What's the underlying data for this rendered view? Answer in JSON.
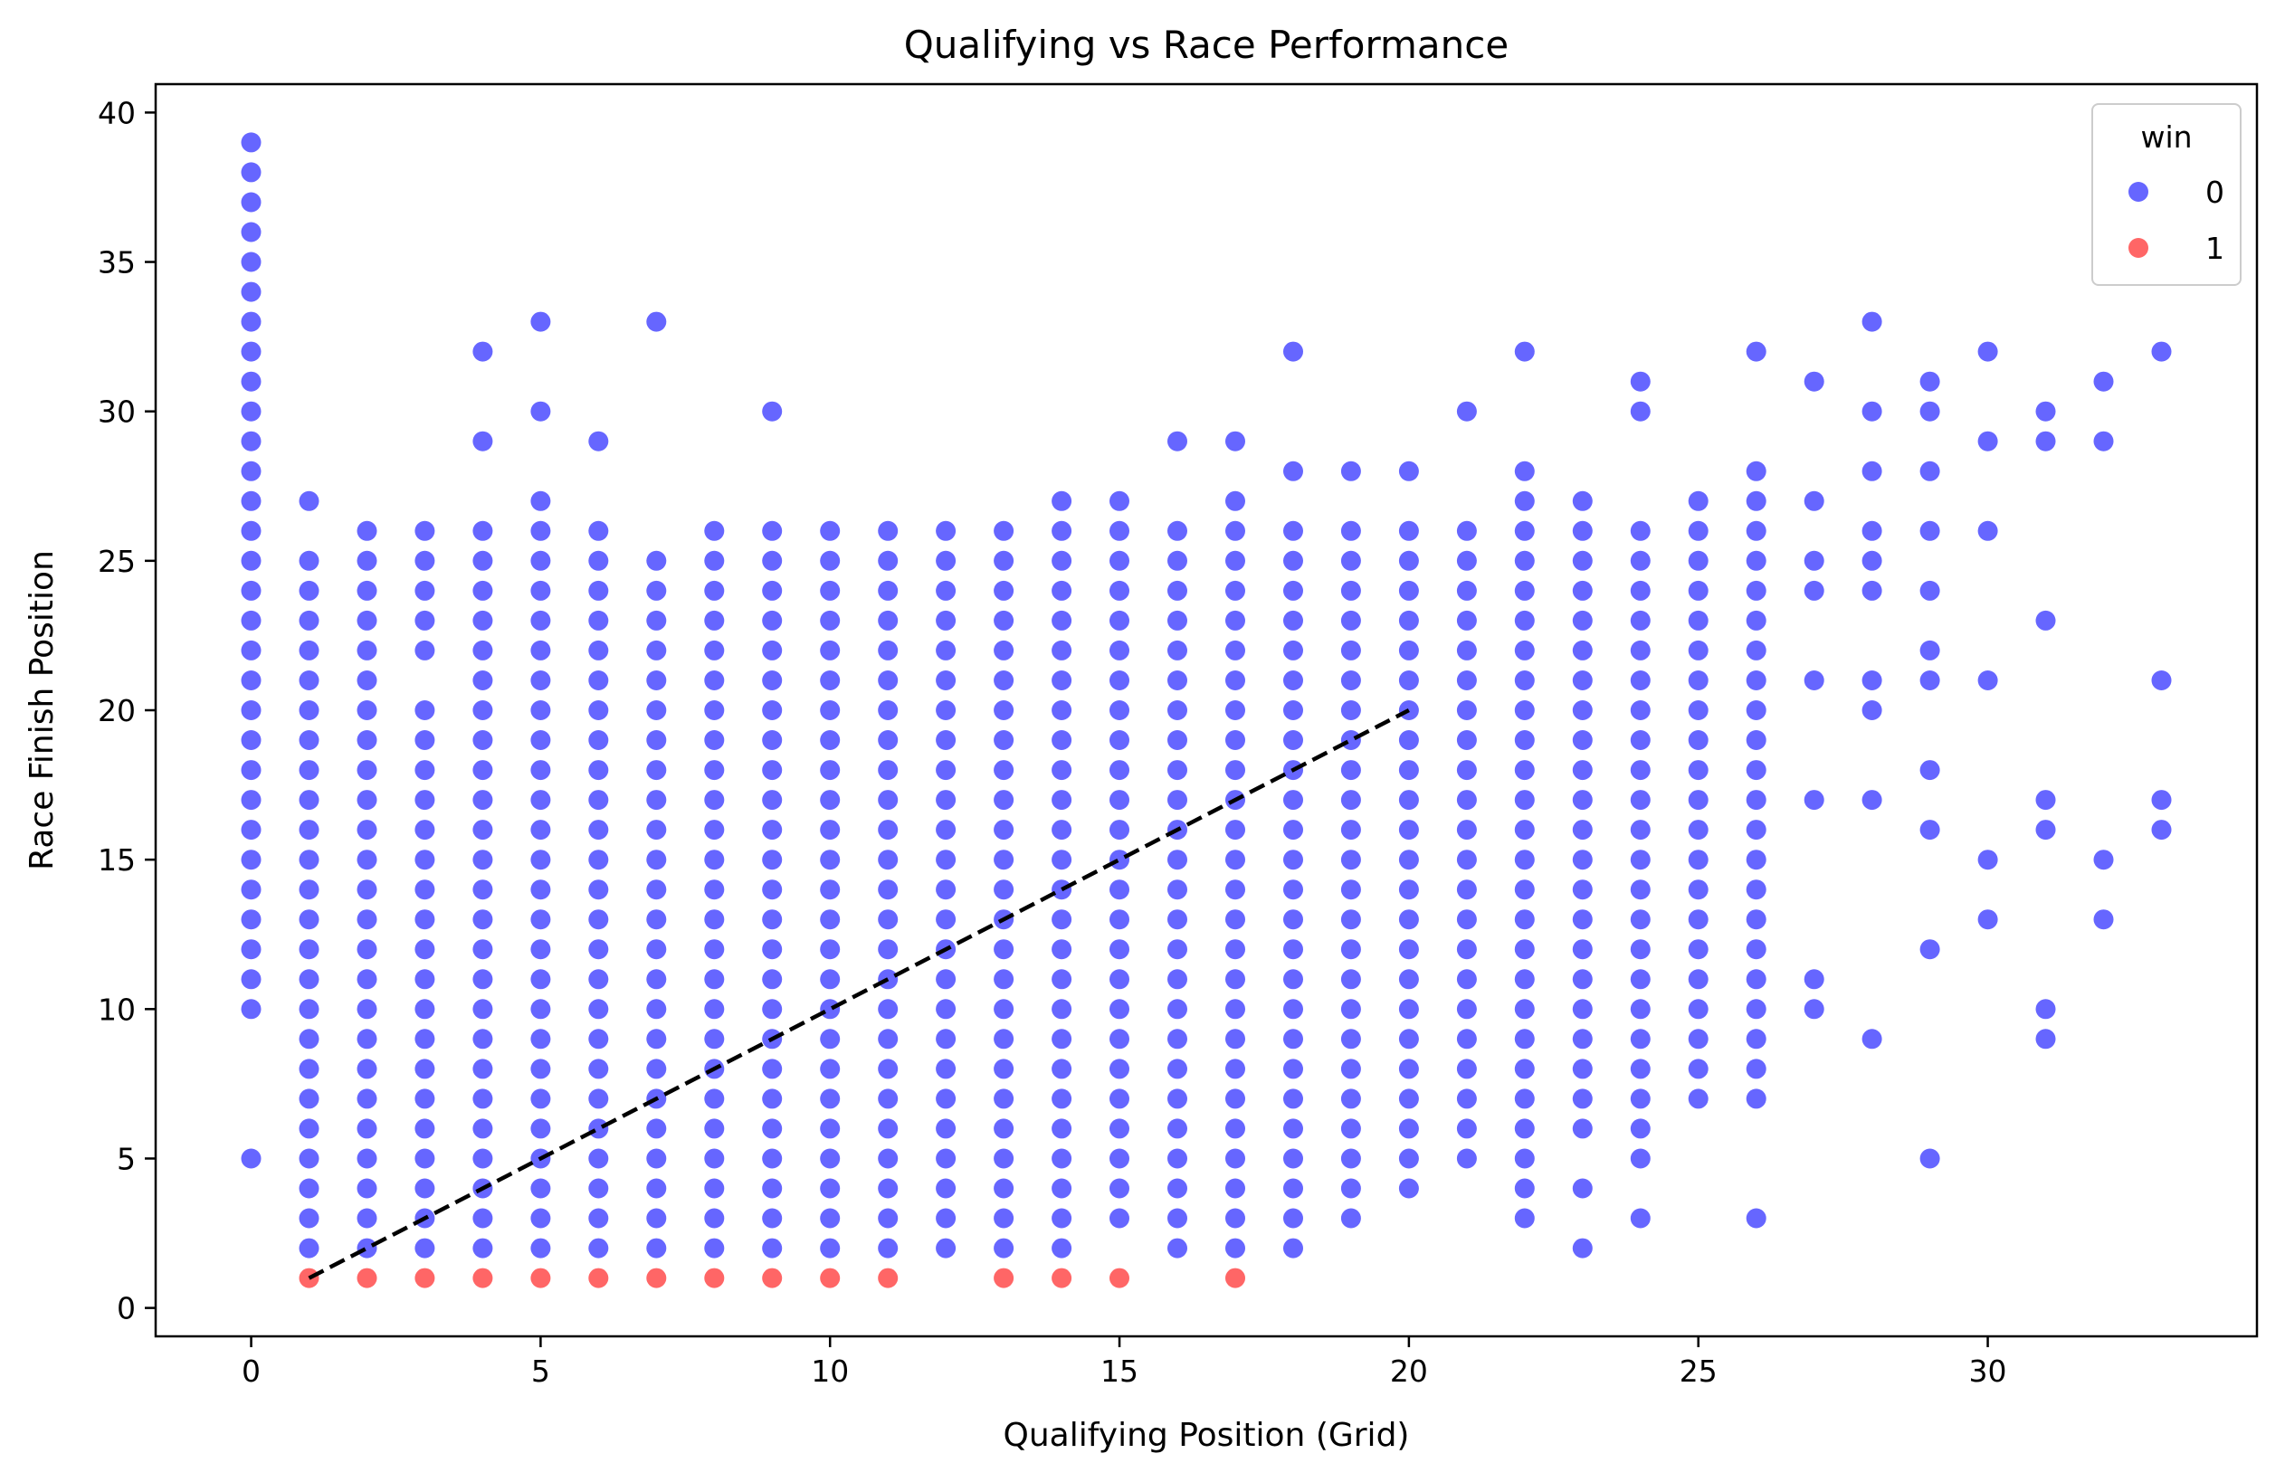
{
  "chart_data": {
    "type": "scatter",
    "title": "Qualifying vs Race Performance",
    "xlabel": "Qualifying Position (Grid)",
    "ylabel": "Race Finish Position",
    "xlim": [
      -1.65,
      34.65
    ],
    "ylim": [
      -0.95,
      40.95
    ],
    "xticks": [
      0,
      5,
      10,
      15,
      20,
      25,
      30
    ],
    "yticks": [
      0,
      5,
      10,
      15,
      20,
      25,
      30,
      35,
      40
    ],
    "grid": false,
    "legend": {
      "title": "win",
      "placement": "top-right"
    },
    "colors": {
      "win_0": "#0000ff",
      "win_1": "#ff0000"
    },
    "marker_alpha": 0.6,
    "series": [
      {
        "name": "0",
        "color": "#0000ff",
        "columns": [
          {
            "x": 0,
            "y": [
              5,
              10,
              11,
              12,
              13,
              14,
              15,
              16,
              17,
              18,
              19,
              20,
              21,
              22,
              23,
              24,
              25,
              26,
              27,
              28,
              29,
              30,
              31,
              32,
              33,
              34,
              35,
              36,
              37,
              38,
              39
            ]
          },
          {
            "x": 1,
            "y": [
              2,
              3,
              4,
              5,
              6,
              7,
              8,
              9,
              10,
              11,
              12,
              13,
              14,
              15,
              16,
              17,
              18,
              19,
              20,
              21,
              22,
              23,
              24,
              25,
              27
            ]
          },
          {
            "x": 2,
            "y": [
              2,
              3,
              4,
              5,
              6,
              7,
              8,
              9,
              10,
              11,
              12,
              13,
              14,
              15,
              16,
              17,
              18,
              19,
              20,
              21,
              22,
              23,
              24,
              25,
              26
            ]
          },
          {
            "x": 3,
            "y": [
              2,
              3,
              4,
              5,
              6,
              7,
              8,
              9,
              10,
              11,
              12,
              13,
              14,
              15,
              16,
              17,
              18,
              19,
              20,
              22,
              23,
              24,
              25,
              26
            ]
          },
          {
            "x": 4,
            "y": [
              2,
              3,
              4,
              5,
              6,
              7,
              8,
              9,
              10,
              11,
              12,
              13,
              14,
              15,
              16,
              17,
              18,
              19,
              20,
              21,
              22,
              23,
              24,
              25,
              26,
              29,
              32
            ]
          },
          {
            "x": 5,
            "y": [
              2,
              3,
              4,
              5,
              6,
              7,
              8,
              9,
              10,
              11,
              12,
              13,
              14,
              15,
              16,
              17,
              18,
              19,
              20,
              21,
              22,
              23,
              24,
              25,
              26,
              27,
              30,
              33
            ]
          },
          {
            "x": 6,
            "y": [
              2,
              3,
              4,
              5,
              6,
              7,
              8,
              9,
              10,
              11,
              12,
              13,
              14,
              15,
              16,
              17,
              18,
              19,
              20,
              21,
              22,
              23,
              24,
              25,
              26,
              29
            ]
          },
          {
            "x": 7,
            "y": [
              2,
              3,
              4,
              5,
              6,
              7,
              8,
              9,
              10,
              11,
              12,
              13,
              14,
              15,
              16,
              17,
              18,
              19,
              20,
              21,
              22,
              23,
              24,
              25,
              33
            ]
          },
          {
            "x": 8,
            "y": [
              2,
              3,
              4,
              5,
              6,
              7,
              8,
              9,
              10,
              11,
              12,
              13,
              14,
              15,
              16,
              17,
              18,
              19,
              20,
              21,
              22,
              23,
              24,
              25,
              26
            ]
          },
          {
            "x": 9,
            "y": [
              2,
              3,
              4,
              5,
              6,
              7,
              8,
              9,
              10,
              11,
              12,
              13,
              14,
              15,
              16,
              17,
              18,
              19,
              20,
              21,
              22,
              23,
              24,
              25,
              26,
              30
            ]
          },
          {
            "x": 10,
            "y": [
              2,
              3,
              4,
              5,
              6,
              7,
              8,
              9,
              10,
              11,
              12,
              13,
              14,
              15,
              16,
              17,
              18,
              19,
              20,
              21,
              22,
              23,
              24,
              25,
              26
            ]
          },
          {
            "x": 11,
            "y": [
              2,
              3,
              4,
              5,
              6,
              7,
              8,
              9,
              10,
              11,
              12,
              13,
              14,
              15,
              16,
              17,
              18,
              19,
              20,
              21,
              22,
              23,
              24,
              25,
              26
            ]
          },
          {
            "x": 12,
            "y": [
              2,
              3,
              4,
              5,
              6,
              7,
              8,
              9,
              10,
              11,
              12,
              13,
              14,
              15,
              16,
              17,
              18,
              19,
              20,
              21,
              22,
              23,
              24,
              25,
              26
            ]
          },
          {
            "x": 13,
            "y": [
              2,
              3,
              4,
              5,
              6,
              7,
              8,
              9,
              10,
              11,
              12,
              13,
              14,
              15,
              16,
              17,
              18,
              19,
              20,
              21,
              22,
              23,
              24,
              25,
              26
            ]
          },
          {
            "x": 14,
            "y": [
              2,
              3,
              4,
              5,
              6,
              7,
              8,
              9,
              10,
              11,
              12,
              13,
              14,
              15,
              16,
              17,
              18,
              19,
              20,
              21,
              22,
              23,
              24,
              25,
              26,
              27
            ]
          },
          {
            "x": 15,
            "y": [
              3,
              4,
              5,
              6,
              7,
              8,
              9,
              10,
              11,
              12,
              13,
              14,
              15,
              16,
              17,
              18,
              19,
              20,
              21,
              22,
              23,
              24,
              25,
              26,
              27
            ]
          },
          {
            "x": 16,
            "y": [
              2,
              3,
              4,
              5,
              6,
              7,
              8,
              9,
              10,
              11,
              12,
              13,
              14,
              15,
              16,
              17,
              18,
              19,
              20,
              21,
              22,
              23,
              24,
              25,
              26,
              29
            ]
          },
          {
            "x": 17,
            "y": [
              2,
              3,
              4,
              5,
              6,
              7,
              8,
              9,
              10,
              11,
              12,
              13,
              14,
              15,
              16,
              17,
              18,
              19,
              20,
              21,
              22,
              23,
              24,
              25,
              26,
              27,
              29
            ]
          },
          {
            "x": 18,
            "y": [
              2,
              3,
              4,
              5,
              6,
              7,
              8,
              9,
              10,
              11,
              12,
              13,
              14,
              15,
              16,
              17,
              18,
              19,
              20,
              21,
              22,
              23,
              24,
              25,
              26,
              28,
              32
            ]
          },
          {
            "x": 19,
            "y": [
              3,
              4,
              5,
              6,
              7,
              8,
              9,
              10,
              11,
              12,
              13,
              14,
              15,
              16,
              17,
              18,
              19,
              20,
              21,
              22,
              23,
              24,
              25,
              26,
              28
            ]
          },
          {
            "x": 20,
            "y": [
              4,
              5,
              6,
              7,
              8,
              9,
              10,
              11,
              12,
              13,
              14,
              15,
              16,
              17,
              18,
              19,
              20,
              21,
              22,
              23,
              24,
              25,
              26,
              28
            ]
          },
          {
            "x": 21,
            "y": [
              5,
              6,
              7,
              8,
              9,
              10,
              11,
              12,
              13,
              14,
              15,
              16,
              17,
              18,
              19,
              20,
              21,
              22,
              23,
              24,
              25,
              26,
              30
            ]
          },
          {
            "x": 22,
            "y": [
              3,
              4,
              5,
              6,
              7,
              8,
              9,
              10,
              11,
              12,
              13,
              14,
              15,
              16,
              17,
              18,
              19,
              20,
              21,
              22,
              23,
              24,
              25,
              26,
              27,
              28,
              32
            ]
          },
          {
            "x": 23,
            "y": [
              2,
              4,
              6,
              7,
              8,
              9,
              10,
              11,
              12,
              13,
              14,
              15,
              16,
              17,
              18,
              19,
              20,
              21,
              22,
              23,
              24,
              25,
              26,
              27
            ]
          },
          {
            "x": 24,
            "y": [
              3,
              5,
              6,
              7,
              8,
              9,
              10,
              11,
              12,
              13,
              14,
              15,
              16,
              17,
              18,
              19,
              20,
              21,
              22,
              23,
              24,
              25,
              26,
              30,
              31
            ]
          },
          {
            "x": 25,
            "y": [
              7,
              8,
              9,
              10,
              11,
              12,
              13,
              14,
              15,
              16,
              17,
              18,
              19,
              20,
              21,
              22,
              23,
              24,
              25,
              26,
              27
            ]
          },
          {
            "x": 26,
            "y": [
              3,
              7,
              8,
              9,
              10,
              11,
              12,
              13,
              14,
              15,
              16,
              17,
              18,
              19,
              20,
              21,
              22,
              23,
              24,
              25,
              26,
              27,
              28,
              32
            ]
          },
          {
            "x": 27,
            "y": [
              10,
              11,
              17,
              21,
              24,
              25,
              27,
              31
            ]
          },
          {
            "x": 28,
            "y": [
              9,
              17,
              20,
              21,
              24,
              25,
              26,
              28,
              30,
              33
            ]
          },
          {
            "x": 29,
            "y": [
              5,
              12,
              16,
              18,
              21,
              22,
              24,
              26,
              28,
              30,
              31
            ]
          },
          {
            "x": 30,
            "y": [
              13,
              15,
              21,
              26,
              29,
              32
            ]
          },
          {
            "x": 31,
            "y": [
              9,
              10,
              16,
              17,
              23,
              29,
              30
            ]
          },
          {
            "x": 32,
            "y": [
              13,
              15,
              29,
              31
            ]
          },
          {
            "x": 33,
            "y": [
              16,
              17,
              21,
              32
            ]
          }
        ]
      },
      {
        "name": "1",
        "color": "#ff0000",
        "columns": [
          {
            "x": 1,
            "y": [
              1
            ]
          },
          {
            "x": 2,
            "y": [
              1
            ]
          },
          {
            "x": 3,
            "y": [
              1
            ]
          },
          {
            "x": 4,
            "y": [
              1
            ]
          },
          {
            "x": 5,
            "y": [
              1
            ]
          },
          {
            "x": 6,
            "y": [
              1
            ]
          },
          {
            "x": 7,
            "y": [
              1
            ]
          },
          {
            "x": 8,
            "y": [
              1
            ]
          },
          {
            "x": 9,
            "y": [
              1
            ]
          },
          {
            "x": 10,
            "y": [
              1
            ]
          },
          {
            "x": 11,
            "y": [
              1
            ]
          },
          {
            "x": 13,
            "y": [
              1
            ]
          },
          {
            "x": 14,
            "y": [
              1
            ]
          },
          {
            "x": 15,
            "y": [
              1
            ]
          },
          {
            "x": 17,
            "y": [
              1
            ]
          }
        ]
      }
    ],
    "reference_line": {
      "style": "dashed",
      "color": "#000000",
      "x": [
        1,
        20
      ],
      "y": [
        1,
        20
      ]
    }
  }
}
